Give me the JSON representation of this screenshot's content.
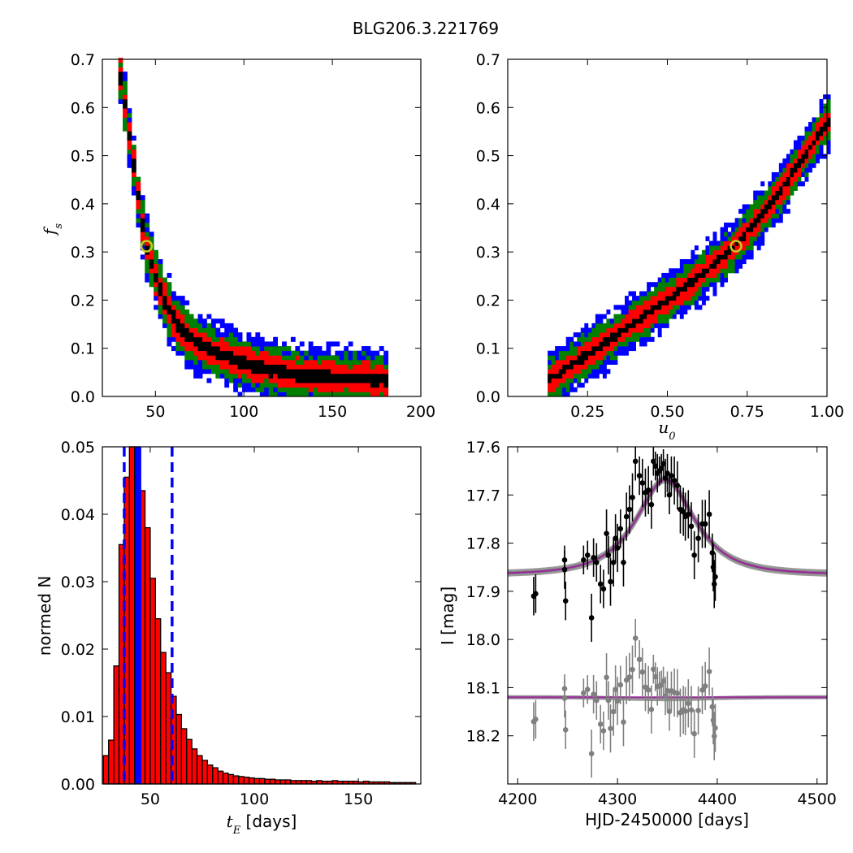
{
  "title": "BLG206.3.221769",
  "colors": {
    "sigma1": "#000000",
    "sigma2": "#ff0000",
    "sigma3": "#008000",
    "sigma4": "#0000ff",
    "best_marker": "#c8c820",
    "hist_fill": "#ff0000",
    "hist_highlight": "#0000ff",
    "model_line": "#9a2a9a",
    "model_band": "#808080",
    "data_points": "#000000",
    "residual_points": "#808080"
  },
  "chart_data": [
    {
      "name": "panel_fs_vs_tE",
      "type": "heatmap",
      "title": "",
      "xlabel": "",
      "ylabel": "f_s",
      "xlim": [
        20,
        200
      ],
      "ylim": [
        0.0,
        0.7
      ],
      "xticks": [
        "50",
        "100",
        "150",
        "200"
      ],
      "xtick_values": [
        50,
        100,
        150,
        200
      ],
      "yticks": [
        "0.0",
        "0.1",
        "0.2",
        "0.3",
        "0.4",
        "0.5",
        "0.6",
        "0.7"
      ],
      "ytick_values": [
        0.0,
        0.1,
        0.2,
        0.3,
        0.4,
        0.5,
        0.6,
        0.7
      ],
      "best_fit": {
        "x": 45,
        "y": 0.312
      },
      "ridge": [
        [
          30,
          0.67
        ],
        [
          33,
          0.6
        ],
        [
          36,
          0.52
        ],
        [
          40,
          0.42
        ],
        [
          45,
          0.31
        ],
        [
          50,
          0.25
        ],
        [
          55,
          0.2
        ],
        [
          62,
          0.15
        ],
        [
          70,
          0.12
        ],
        [
          80,
          0.1
        ],
        [
          95,
          0.075
        ],
        [
          110,
          0.06
        ],
        [
          130,
          0.045
        ],
        [
          150,
          0.04
        ],
        [
          180,
          0.035
        ]
      ],
      "band_halfwidths": {
        "sigma1": 0.012,
        "sigma2": 0.03,
        "sigma3": 0.045,
        "sigma4": 0.06
      }
    },
    {
      "name": "panel_fs_vs_u0",
      "type": "heatmap",
      "title": "",
      "xlabel": "u_0",
      "ylabel": "",
      "xlim": [
        0.0,
        1.0
      ],
      "ylim": [
        0.0,
        0.7
      ],
      "xticks": [
        "0.25",
        "0.50",
        "0.75",
        "1.00"
      ],
      "xtick_values": [
        0.25,
        0.5,
        0.75,
        1.0
      ],
      "yticks": [
        "0.0",
        "0.1",
        "0.2",
        "0.3",
        "0.4",
        "0.5",
        "0.6",
        "0.7"
      ],
      "ytick_values": [
        0.0,
        0.1,
        0.2,
        0.3,
        0.4,
        0.5,
        0.6,
        0.7
      ],
      "best_fit": {
        "x": 0.715,
        "y": 0.312
      },
      "ridge": [
        [
          0.13,
          0.035
        ],
        [
          0.2,
          0.065
        ],
        [
          0.3,
          0.11
        ],
        [
          0.4,
          0.155
        ],
        [
          0.5,
          0.2
        ],
        [
          0.6,
          0.25
        ],
        [
          0.7,
          0.305
        ],
        [
          0.8,
          0.38
        ],
        [
          0.9,
          0.47
        ],
        [
          1.0,
          0.57
        ]
      ],
      "band_halfwidths": {
        "sigma1": 0.008,
        "sigma2": 0.025,
        "sigma3": 0.04,
        "sigma4": 0.055
      }
    },
    {
      "name": "panel_tE_histogram",
      "type": "bar",
      "title": "",
      "xlabel": "t_E [days]",
      "ylabel": "normed N",
      "xlim": [
        27,
        180
      ],
      "ylim": [
        0.0,
        0.05
      ],
      "xticks": [
        "50",
        "100",
        "150"
      ],
      "xtick_values": [
        50,
        100,
        150
      ],
      "yticks": [
        "0.00",
        "0.01",
        "0.02",
        "0.03",
        "0.04",
        "0.05"
      ],
      "ytick_values": [
        0.0,
        0.01,
        0.02,
        0.03,
        0.04,
        0.05
      ],
      "bin_start": 27.5,
      "bin_width": 2.5,
      "values": [
        0.0042,
        0.0065,
        0.0175,
        0.0355,
        0.0455,
        0.0505,
        0.0505,
        0.0435,
        0.038,
        0.0305,
        0.0245,
        0.0195,
        0.0165,
        0.013,
        0.0103,
        0.0082,
        0.0066,
        0.0052,
        0.0042,
        0.0035,
        0.0028,
        0.0024,
        0.0019,
        0.0016,
        0.0014,
        0.0012,
        0.0011,
        0.001,
        0.0009,
        0.0008,
        0.0008,
        0.0007,
        0.0007,
        0.0006,
        0.0006,
        0.0006,
        0.0005,
        0.0005,
        0.0005,
        0.0005,
        0.0004,
        0.0005,
        0.0004,
        0.0004,
        0.0005,
        0.0004,
        0.0004,
        0.0004,
        0.0004,
        0.0003,
        0.0004,
        0.0003,
        0.0003,
        0.0003,
        0.0003,
        0.0002,
        0.0002,
        0.0002,
        0.0002,
        0.0002
      ],
      "highlight_bins": [
        6
      ],
      "median": 45,
      "lower": 37.5,
      "upper": 60.5
    },
    {
      "name": "panel_lightcurve",
      "type": "scatter",
      "title": "",
      "xlabel": "HJD-2450000 [days]",
      "ylabel": "I [mag]",
      "xlim": [
        4190,
        4510
      ],
      "ylim": [
        18.3,
        17.6
      ],
      "y_inverted": true,
      "xticks": [
        "4200",
        "4300",
        "4400",
        "4500"
      ],
      "xtick_values": [
        4200,
        4300,
        4400,
        4500
      ],
      "yticks": [
        "17.6",
        "17.7",
        "17.8",
        "17.9",
        "18.0",
        "18.1",
        "18.2"
      ],
      "ytick_values": [
        17.6,
        17.7,
        17.8,
        17.9,
        18.0,
        18.1,
        18.2
      ],
      "model": {
        "baseline": 17.865,
        "peak_mag": 17.668,
        "t0": 4348,
        "tE": 45,
        "u0": 0.715
      },
      "residual_offset": 18.12,
      "points": [
        [
          4216,
          17.91,
          0.04
        ],
        [
          4218,
          17.905,
          0.04
        ],
        [
          4247,
          17.835,
          0.03
        ],
        [
          4247,
          17.855,
          0.04
        ],
        [
          4248,
          17.92,
          0.04
        ],
        [
          4266,
          17.835,
          0.03
        ],
        [
          4270,
          17.825,
          0.03
        ],
        [
          4274,
          17.955,
          0.05
        ],
        [
          4276,
          17.83,
          0.04
        ],
        [
          4279,
          17.84,
          0.04
        ],
        [
          4283,
          17.885,
          0.04
        ],
        [
          4286,
          17.895,
          0.04
        ],
        [
          4289,
          17.78,
          0.05
        ],
        [
          4291,
          17.825,
          0.04
        ],
        [
          4293,
          17.88,
          0.05
        ],
        [
          4296,
          17.84,
          0.05
        ],
        [
          4298,
          17.79,
          0.05
        ],
        [
          4300,
          17.81,
          0.05
        ],
        [
          4303,
          17.77,
          0.04
        ],
        [
          4306,
          17.84,
          0.05
        ],
        [
          4309,
          17.745,
          0.05
        ],
        [
          4312,
          17.73,
          0.05
        ],
        [
          4315,
          17.705,
          0.05
        ],
        [
          4318,
          17.63,
          0.04
        ],
        [
          4322,
          17.66,
          0.04
        ],
        [
          4325,
          17.675,
          0.05
        ],
        [
          4328,
          17.695,
          0.05
        ],
        [
          4331,
          17.69,
          0.05
        ],
        [
          4334,
          17.72,
          0.05
        ],
        [
          4336,
          17.63,
          0.03
        ],
        [
          4338,
          17.64,
          0.03
        ],
        [
          4340,
          17.655,
          0.04
        ],
        [
          4342,
          17.65,
          0.03
        ],
        [
          4344,
          17.645,
          0.03
        ],
        [
          4346,
          17.635,
          0.03
        ],
        [
          4348,
          17.665,
          0.04
        ],
        [
          4350,
          17.655,
          0.04
        ],
        [
          4352,
          17.7,
          0.04
        ],
        [
          4354,
          17.66,
          0.04
        ],
        [
          4357,
          17.67,
          0.05
        ],
        [
          4360,
          17.68,
          0.05
        ],
        [
          4363,
          17.73,
          0.05
        ],
        [
          4366,
          17.735,
          0.05
        ],
        [
          4368,
          17.745,
          0.05
        ],
        [
          4371,
          17.74,
          0.05
        ],
        [
          4374,
          17.765,
          0.05
        ],
        [
          4377,
          17.825,
          0.05
        ],
        [
          4381,
          17.79,
          0.05
        ],
        [
          4385,
          17.76,
          0.05
        ],
        [
          4388,
          17.76,
          0.05
        ],
        [
          4392,
          17.74,
          0.05
        ],
        [
          4395,
          17.82,
          0.04
        ],
        [
          4396,
          17.85,
          0.05
        ],
        [
          4397,
          17.885,
          0.05
        ],
        [
          4398,
          17.87,
          0.05
        ]
      ]
    }
  ]
}
